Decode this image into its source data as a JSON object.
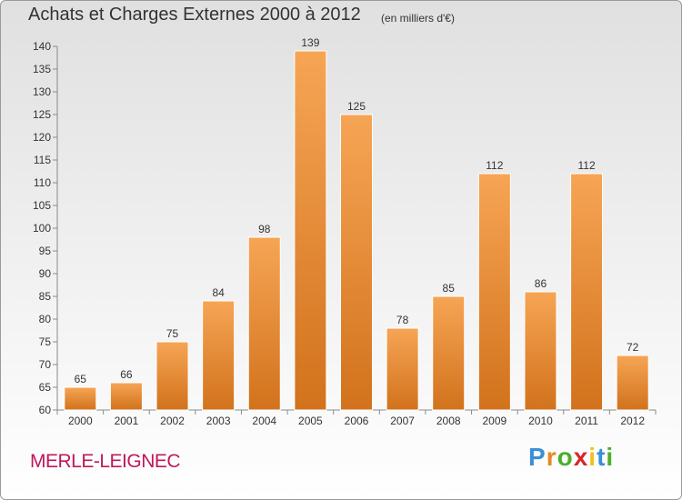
{
  "header": {
    "title": "Achats et Charges Externes 2000 à 2012",
    "subtitle": "(en milliers d'€)"
  },
  "footer": {
    "commune": "MERLE-LEIGNEC",
    "brand_letters": [
      "P",
      "r",
      "o",
      "x",
      "i",
      "t",
      "i"
    ],
    "brand_colors": [
      "#3a8fd6",
      "#e8891c",
      "#4caf2b",
      "#d6272b",
      "#f3c11b",
      "#3a8fd6",
      "#4caf2b"
    ]
  },
  "chart_data": {
    "type": "bar",
    "title": "Achats et Charges Externes 2000 à 2012",
    "subtitle": "(en milliers d'€)",
    "categories": [
      "2000",
      "2001",
      "2002",
      "2003",
      "2004",
      "2005",
      "2006",
      "2007",
      "2008",
      "2009",
      "2010",
      "2011",
      "2012"
    ],
    "values": [
      65,
      66,
      75,
      84,
      98,
      139,
      125,
      78,
      85,
      112,
      86,
      112,
      72
    ],
    "ylim": [
      60,
      140
    ],
    "yticks": [
      60,
      65,
      70,
      75,
      80,
      85,
      90,
      95,
      100,
      105,
      110,
      115,
      120,
      125,
      130,
      135,
      140
    ],
    "grid": false,
    "bar_color": "#f0922e",
    "xlabel": "",
    "ylabel": ""
  }
}
